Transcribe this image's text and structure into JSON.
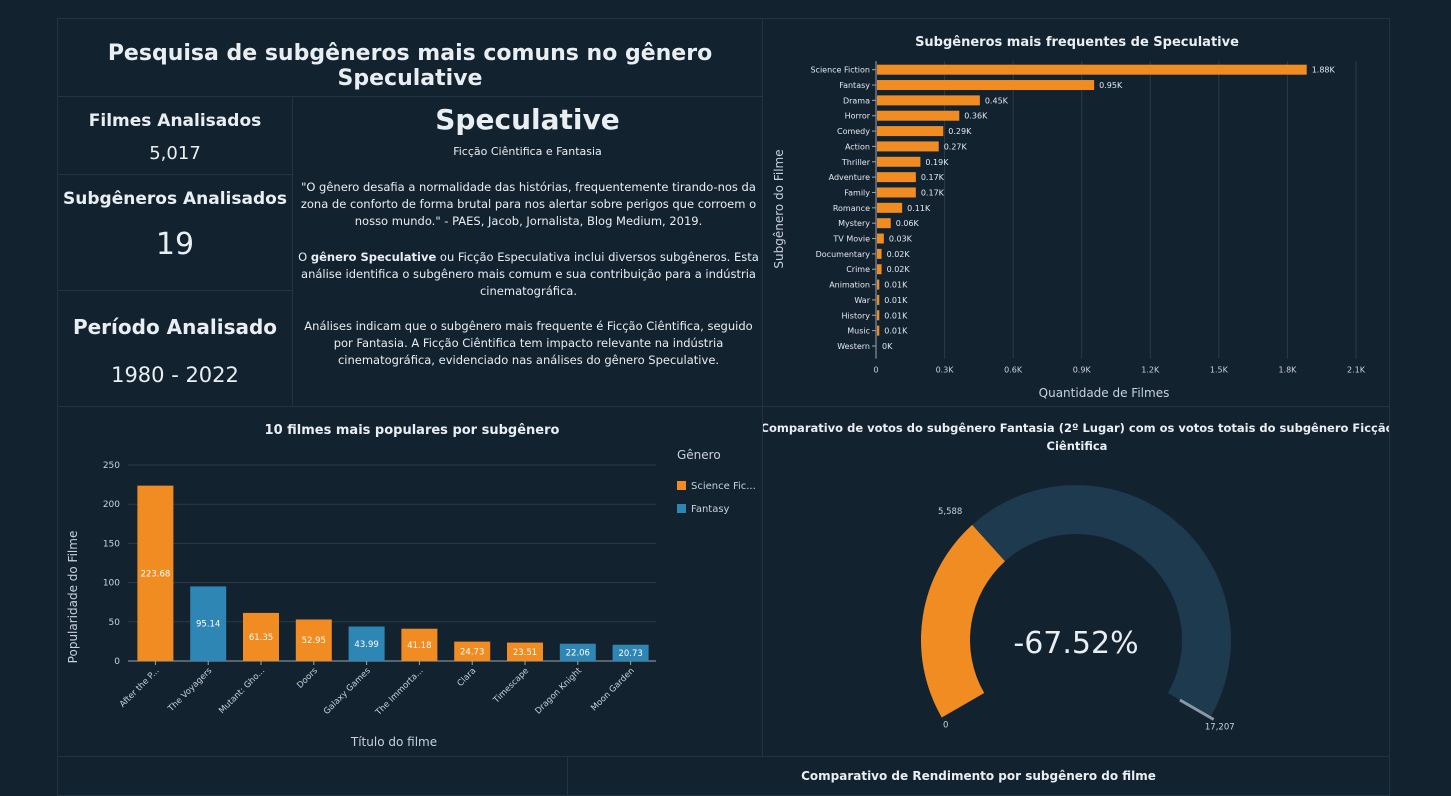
{
  "header": {
    "title": "Pesquisa de subgêneros mais comuns no gênero Speculative"
  },
  "kpis": {
    "films_label": "Filmes Analisados",
    "films_value": "5,017",
    "subgenres_label": "Subgêneros Analisados",
    "subgenres_value": "19",
    "period_label": "Período Analisado",
    "period_value": "1980 - 2022"
  },
  "description": {
    "heading": "Speculative",
    "subheading": "Ficção Ciêntifica e Fantasia",
    "quote": "\"O gênero desafia a normalidade das histórias, frequentemente tirando-nos da zona de conforto de forma brutal para nos alertar sobre perigos que corroem o nosso mundo.\" - PAES, Jacob, Jornalista, Blog Medium, 2019.",
    "intro_prefix": "O ",
    "intro_bold": "gênero Speculative",
    "intro_suffix": " ou Ficção Especulativa inclui diversos subgêneros. Esta análise identifica o subgênero mais comum e sua contribuição para a indústria cinematográfica.",
    "conclusion": "Análises indicam que o subgênero mais frequente é Ficção Ciêntifica, seguido por Fantasia. A Ficção Ciêntifica tem impacto relevante na indústria cinematográfica, evidenciado nas análises do gênero Speculative."
  },
  "colors": {
    "background": "#13222f",
    "orange": "#f08c21",
    "blue": "#2e86b5",
    "gauge_track": "#1d3a4e",
    "grid": "#2a3b49"
  },
  "chart_data": [
    {
      "type": "bar",
      "orientation": "horizontal",
      "title": "Subgêneros mais frequentes de Speculative",
      "xlabel": "Quantidade de Filmes",
      "ylabel": "Subgênero do Filme",
      "categories": [
        "Science Fiction",
        "Fantasy",
        "Drama",
        "Horror",
        "Comedy",
        "Action",
        "Thriller",
        "Adventure",
        "Family",
        "Romance",
        "Mystery",
        "TV Movie",
        "Documentary",
        "Crime",
        "Animation",
        "War",
        "History",
        "Music",
        "Western"
      ],
      "values": [
        1880,
        950,
        450,
        360,
        290,
        270,
        190,
        170,
        170,
        110,
        60,
        30,
        20,
        20,
        10,
        10,
        10,
        10,
        0
      ],
      "labels": [
        "1.88K",
        "0.95K",
        "0.45K",
        "0.36K",
        "0.29K",
        "0.27K",
        "0.19K",
        "0.17K",
        "0.17K",
        "0.11K",
        "0.06K",
        "0.03K",
        "0.02K",
        "0.02K",
        "0.01K",
        "0.01K",
        "0.01K",
        "0.01K",
        "0K"
      ],
      "xticks": [
        "0",
        "0.3K",
        "0.6K",
        "0.9K",
        "1.2K",
        "1.5K",
        "1.8K",
        "2.1K"
      ],
      "xlim": [
        0,
        2100
      ],
      "grid": true
    },
    {
      "type": "bar",
      "title": "10 filmes mais populares por subgênero",
      "xlabel": "Título do filme",
      "ylabel": "Popularidade do Filme",
      "ylim": [
        0,
        250
      ],
      "yticks": [
        "0",
        "50",
        "100",
        "150",
        "200",
        "250"
      ],
      "legend_title": "Gênero",
      "legend_position": "right",
      "series_names": [
        "Science Fic...",
        "Fantasy"
      ],
      "categories": [
        "After the P...",
        "The Voyagers",
        "Mutant: Gho...",
        "Doors",
        "Galaxy Games",
        "The Immorta...",
        "Clara",
        "Timescape",
        "Dragon Knight",
        "Moon Garden"
      ],
      "values": [
        223.68,
        95.14,
        61.35,
        52.95,
        43.99,
        41.18,
        24.73,
        23.51,
        22.06,
        20.73
      ],
      "labels": [
        "223.68",
        "95.14",
        "61.35",
        "52.95",
        "43.99",
        "41.18",
        "24.73",
        "23.51",
        "22.06",
        "20.73"
      ],
      "series_index": [
        0,
        1,
        0,
        0,
        1,
        0,
        0,
        0,
        1,
        1
      ],
      "grid": true
    },
    {
      "type": "gauge",
      "title": "Comparativo de votos do subgênero Fantasia (2º Lugar) com os votos totais do subgênero Ficção Ciêntifica",
      "value": 5588,
      "target": 17207,
      "min": 0,
      "value_label": "5,588",
      "min_label": "0",
      "target_label": "17,207",
      "center_label": "-67.52%"
    }
  ],
  "bottom": {
    "right_title": "Comparativo de Rendimento por subgênero do filme"
  }
}
